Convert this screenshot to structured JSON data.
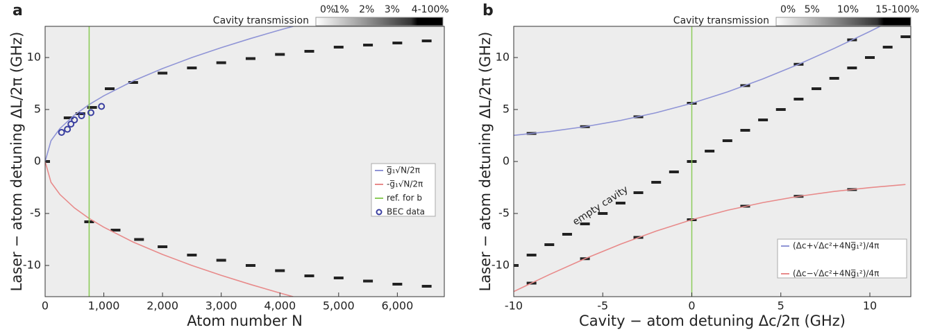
{
  "chart_data": [
    {
      "type": "line",
      "panel": "a",
      "xlabel": "Atom number N",
      "ylabel": "Laser − atom detuning ΔL/2π (GHz)",
      "colorbar_title": "Cavity transmission",
      "colorbar_labels": [
        "0%",
        "1%",
        "2%",
        "3%",
        "4-100%"
      ],
      "xlim": [
        0,
        6800
      ],
      "ylim": [
        -13,
        13
      ],
      "xticks": [
        0,
        {
          "value": 1000,
          "label": "1,000"
        },
        {
          "value": 2000,
          "label": "2,000"
        },
        {
          "value": 3000,
          "label": "3,000"
        },
        {
          "value": 4000,
          "label": "4,000"
        },
        {
          "value": 5000,
          "label": "5,000"
        },
        {
          "value": 6000,
          "label": "6,000"
        }
      ],
      "yticks": [
        -10,
        -5,
        0,
        5,
        10
      ],
      "series": [
        {
          "name": "g̅₁√N/2π",
          "color": "#8f94d6",
          "style": "line",
          "x": [
            0,
            100,
            250,
            500,
            750,
            1000,
            1500,
            2000,
            2500,
            3000,
            3500,
            4000,
            4225
          ],
          "values": [
            0,
            2,
            3.16,
            4.47,
            5.48,
            6.32,
            7.75,
            8.94,
            10,
            10.95,
            11.83,
            12.65,
            13
          ]
        },
        {
          "name": "-g̅₁√N/2π",
          "color": "#e88a8a",
          "style": "line",
          "x": [
            0,
            100,
            250,
            500,
            750,
            1000,
            1500,
            2000,
            2500,
            3000,
            3500,
            4000,
            4225
          ],
          "values": [
            0,
            -2,
            -3.16,
            -4.47,
            -5.48,
            -6.32,
            -7.75,
            -8.94,
            -10,
            -10.95,
            -11.83,
            -12.65,
            -13
          ]
        },
        {
          "name": "ref. for b",
          "color": "#8ccc5a",
          "style": "line",
          "x": [
            750,
            750
          ],
          "values": [
            -13,
            13
          ]
        },
        {
          "name": "BEC data",
          "color": "#3a3fa0",
          "style": "markers",
          "x": [
            280,
            380,
            440,
            500,
            620,
            780,
            960
          ],
          "values": [
            2.8,
            3.1,
            3.6,
            4.0,
            4.4,
            4.7,
            5.3
          ]
        }
      ],
      "peaks": {
        "x": [
          0,
          400,
          600,
          800,
          1100,
          1500,
          2000,
          2500,
          3000,
          3500,
          4000,
          4500,
          5000,
          5500,
          6000,
          6500,
          750,
          1200,
          1600,
          2000,
          2500,
          3000,
          3500,
          4000,
          4500,
          5000,
          5500,
          6000,
          6500
        ],
        "values": [
          0,
          4.2,
          4.6,
          5.2,
          7.0,
          7.6,
          8.5,
          9.0,
          9.5,
          9.9,
          10.3,
          10.6,
          11.0,
          11.2,
          11.4,
          11.6,
          -5.8,
          -6.6,
          -7.5,
          -8.2,
          -9.0,
          -9.5,
          -10.0,
          -10.5,
          -11.0,
          -11.2,
          -11.5,
          -11.8,
          -12.0
        ]
      }
    },
    {
      "type": "line",
      "panel": "b",
      "xlabel": "Cavity − atom detuning Δc/2π (GHz)",
      "ylabel": "Laser − atom detuning ΔL/2π (GHz)",
      "colorbar_title": "Cavity transmission",
      "colorbar_labels": [
        "0%",
        "5%",
        "10%",
        "15-100%"
      ],
      "annotation": "empty cavity",
      "xlim": [
        -10,
        12.3
      ],
      "ylim": [
        -13,
        13
      ],
      "xticks": [
        -10,
        -5,
        0,
        5,
        10
      ],
      "yticks": [
        -10,
        -5,
        0,
        5,
        10
      ],
      "vline": {
        "x": 0,
        "color": "#8ccc5a"
      },
      "series": [
        {
          "name": "(Δc+√Δc²+4Ng̅₁²)/4π",
          "color": "#8f94d6",
          "style": "line",
          "x": [
            -10,
            -8,
            -6,
            -4,
            -2,
            0,
            2,
            4,
            6,
            8,
            10,
            12
          ],
          "values": [
            2.51,
            2.88,
            3.35,
            3.95,
            4.69,
            5.6,
            6.69,
            7.95,
            9.35,
            10.88,
            12.51,
            14.21
          ]
        },
        {
          "name": "(Δc−√Δc²+4Ng̅₁²)/4π",
          "color": "#e88a8a",
          "style": "line",
          "x": [
            -10,
            -8,
            -6,
            -4,
            -2,
            0,
            2,
            4,
            6,
            8,
            10,
            12
          ],
          "values": [
            -12.51,
            -10.88,
            -9.35,
            -7.95,
            -6.69,
            -5.6,
            -4.69,
            -3.95,
            -3.35,
            -2.88,
            -2.51,
            -2.21
          ]
        }
      ],
      "peaks": {
        "x": [
          -10,
          -9,
          -8,
          -7,
          -6,
          -5,
          -4,
          -3,
          -2,
          -1,
          0,
          1,
          2,
          3,
          4,
          5,
          6,
          7,
          8,
          9,
          10,
          11,
          12,
          -9,
          -6,
          -3,
          0,
          3,
          6,
          9,
          -9,
          -6,
          -3,
          0,
          3,
          6,
          9
        ],
        "values": [
          -10,
          -9,
          -8,
          -7,
          -6,
          -5,
          -4,
          -3,
          -2,
          -1,
          0,
          1,
          2,
          3,
          4,
          5,
          6,
          7,
          8,
          9,
          10,
          11,
          12,
          2.7,
          3.35,
          4.3,
          5.6,
          7.3,
          9.35,
          11.7,
          -11.7,
          -9.35,
          -7.3,
          -5.6,
          -4.3,
          -3.35,
          -2.7
        ]
      }
    }
  ]
}
